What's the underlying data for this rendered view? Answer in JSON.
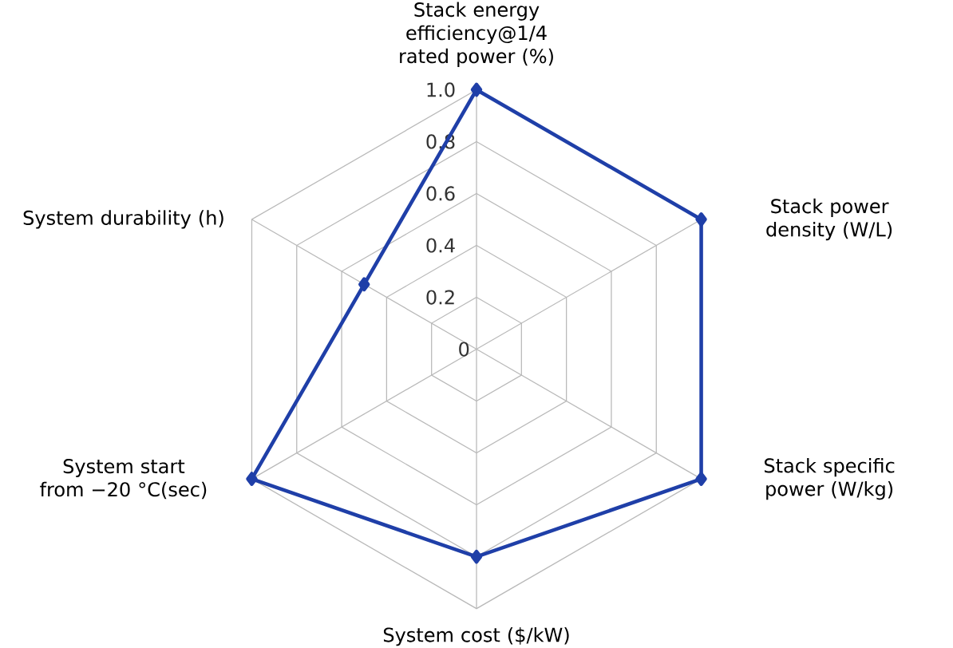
{
  "chart_data": {
    "type": "radar",
    "categories": [
      "Stack energy efficiency@1/4 rated power (%)",
      "Stack power density (W/L)",
      "Stack specific power (W/kg)",
      "System cost ($/kW)",
      "System start from −20 °C(sec)",
      "System durability (h)"
    ],
    "series": [
      {
        "color": "#1f3fa8",
        "values": [
          1,
          1,
          1,
          0.8,
          1,
          0.5
        ]
      }
    ],
    "ylim": [
      0,
      1
    ],
    "yticks": [
      0,
      0.2,
      0.4,
      0.6,
      0.8,
      {
        "value": 1,
        "label": "1.0"
      }
    ],
    "grid": true,
    "marker": "diamond"
  }
}
